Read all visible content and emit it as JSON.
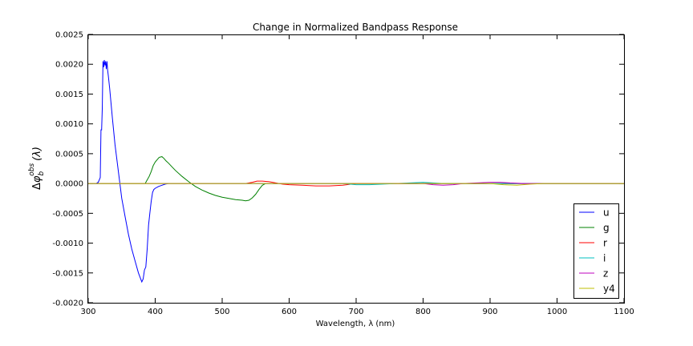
{
  "chart_data": {
    "type": "line",
    "title": "Change in Normalized Bandpass Response",
    "xlabel": "Wavelength, λ (nm)",
    "ylabel": {
      "delta": "Δ",
      "phi": "φ",
      "sub": "b",
      "sup": "obs",
      "arg": "(λ)"
    },
    "xlim": [
      300,
      1100
    ],
    "ylim": [
      -0.002,
      0.0025
    ],
    "xticks": [
      "300",
      "400",
      "500",
      "600",
      "700",
      "800",
      "900",
      "1000",
      "1100"
    ],
    "yticks": [
      "-0.0020",
      "-0.0015",
      "-0.0010",
      "-0.0005",
      "0.0000",
      "0.0005",
      "0.0010",
      "0.0015",
      "0.0020",
      "0.0025"
    ],
    "legend_position": "bottom-right",
    "series": [
      {
        "name": "u",
        "color": "#0000ff",
        "x": [
          300,
          312,
          315,
          318,
          319,
          320,
          321,
          322,
          323,
          324,
          325,
          326,
          327,
          328,
          329,
          330,
          332,
          334,
          336,
          340,
          345,
          350,
          355,
          360,
          365,
          370,
          375,
          380,
          382,
          384,
          386,
          388,
          390,
          392,
          394,
          396,
          398,
          400,
          405,
          410,
          415,
          420,
          1100
        ],
        "y": [
          0,
          0,
          2e-05,
          0.0001,
          0.0009,
          0.0009,
          0.00125,
          0.00205,
          0.00195,
          0.00207,
          0.00198,
          0.00205,
          0.00192,
          0.00205,
          0.0019,
          0.0018,
          0.0016,
          0.00135,
          0.0011,
          0.00065,
          0.0002,
          -0.00025,
          -0.00055,
          -0.00085,
          -0.0011,
          -0.0013,
          -0.0015,
          -0.00165,
          -0.0016,
          -0.00145,
          -0.0014,
          -0.0011,
          -0.0007,
          -0.0005,
          -0.0003,
          -0.00015,
          -0.0001,
          -8e-05,
          -5e-05,
          -3e-05,
          -1e-05,
          0,
          0
        ]
      },
      {
        "name": "g",
        "color": "#008000",
        "x": [
          300,
          385,
          388,
          391,
          394,
          397,
          400,
          403,
          406,
          410,
          413,
          416,
          420,
          425,
          430,
          440,
          450,
          460,
          470,
          480,
          490,
          500,
          510,
          520,
          530,
          535,
          540,
          545,
          550,
          555,
          560,
          565,
          1100
        ],
        "y": [
          0,
          0,
          6e-05,
          0.00012,
          0.0002,
          0.0003,
          0.00036,
          0.0004,
          0.00044,
          0.00045,
          0.00042,
          0.00038,
          0.00034,
          0.00028,
          0.00022,
          0.00012,
          3e-05,
          -5e-05,
          -0.00011,
          -0.00016,
          -0.0002,
          -0.00023,
          -0.00025,
          -0.00027,
          -0.00028,
          -0.00029,
          -0.00028,
          -0.00024,
          -0.00018,
          -0.0001,
          -3e-05,
          0,
          0
        ]
      },
      {
        "name": "r",
        "color": "#ff0000",
        "x": [
          300,
          535,
          545,
          552,
          560,
          570,
          580,
          590,
          600,
          620,
          640,
          660,
          680,
          700,
          1100
        ],
        "y": [
          0,
          0,
          2e-05,
          4e-05,
          4e-05,
          3e-05,
          1e-05,
          -1e-05,
          -2e-05,
          -3e-05,
          -4e-05,
          -4e-05,
          -3e-05,
          0,
          0
        ]
      },
      {
        "name": "i",
        "color": "#00bfbf",
        "x": [
          300,
          680,
          700,
          720,
          740,
          760,
          780,
          800,
          815,
          830,
          1100
        ],
        "y": [
          0,
          0,
          -2e-05,
          -2e-05,
          -1e-05,
          0,
          1e-05,
          2e-05,
          1e-05,
          0,
          0
        ]
      },
      {
        "name": "z",
        "color": "#bf00bf",
        "x": [
          300,
          800,
          815,
          830,
          845,
          860,
          880,
          900,
          915,
          930,
          950,
          1100
        ],
        "y": [
          0,
          0,
          -2e-05,
          -3e-05,
          -2e-05,
          0,
          1e-05,
          2e-05,
          2e-05,
          1e-05,
          0,
          0
        ]
      },
      {
        "name": "y4",
        "color": "#bfbf00",
        "x": [
          300,
          900,
          920,
          940,
          960,
          980,
          1100
        ],
        "y": [
          0,
          0,
          -2e-05,
          -3e-05,
          -1e-05,
          0,
          0
        ]
      }
    ]
  }
}
